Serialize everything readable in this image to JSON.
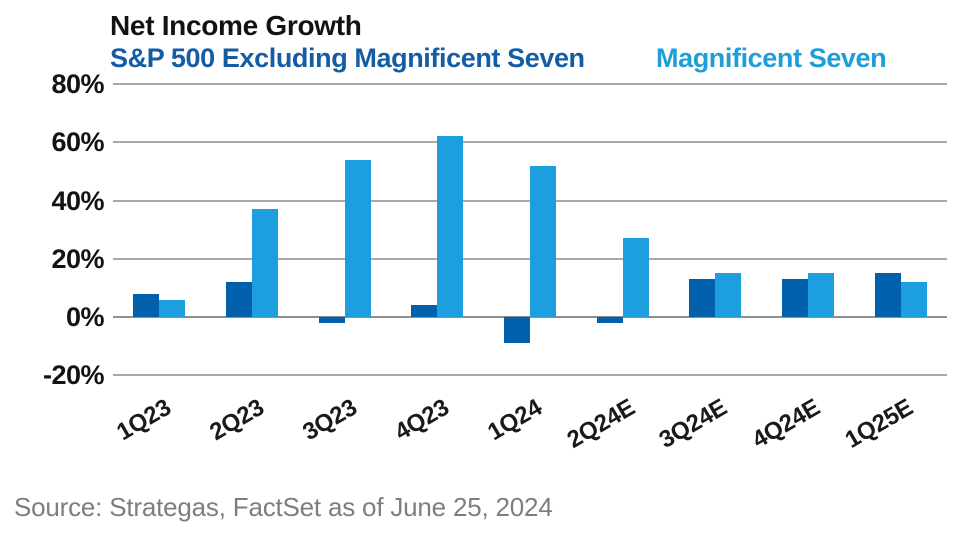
{
  "header": {
    "title": "Net Income Growth",
    "legend": [
      {
        "label": "S&P 500 Excluding Magnificent Seven",
        "color": "#145DA5"
      },
      {
        "label": "Magnificent Seven",
        "color": "#1E9ED9"
      }
    ]
  },
  "chart_data": {
    "type": "bar",
    "title": "Net Income Growth",
    "categories": [
      "1Q23",
      "2Q23",
      "3Q23",
      "4Q23",
      "1Q24",
      "2Q24E",
      "3Q24E",
      "4Q24E",
      "1Q25E"
    ],
    "series": [
      {
        "name": "S&P 500 Excluding Magnificent Seven",
        "color": "#0060AC",
        "values": [
          8,
          12,
          -2,
          4,
          -9,
          -2,
          13,
          13,
          15
        ]
      },
      {
        "name": "Magnificent Seven",
        "color": "#1D9FDF",
        "values": [
          6,
          37,
          54,
          62,
          52,
          27,
          15,
          15,
          12
        ]
      }
    ],
    "ylim": [
      -20,
      80
    ],
    "yticks": [
      {
        "value": 80,
        "label": "80%"
      },
      {
        "value": 60,
        "label": "60%"
      },
      {
        "value": 40,
        "label": "40%"
      },
      {
        "value": 20,
        "label": "20%"
      },
      {
        "value": 0,
        "label": "0%"
      },
      {
        "value": -20,
        "label": "-20%"
      }
    ],
    "grid": true,
    "legend_position": "top",
    "gridline_color": "#A9A9A9",
    "baseline_color": "#8F8F8F"
  },
  "footer": {
    "source": "Source: Strategas, FactSet as of June 25, 2024"
  }
}
